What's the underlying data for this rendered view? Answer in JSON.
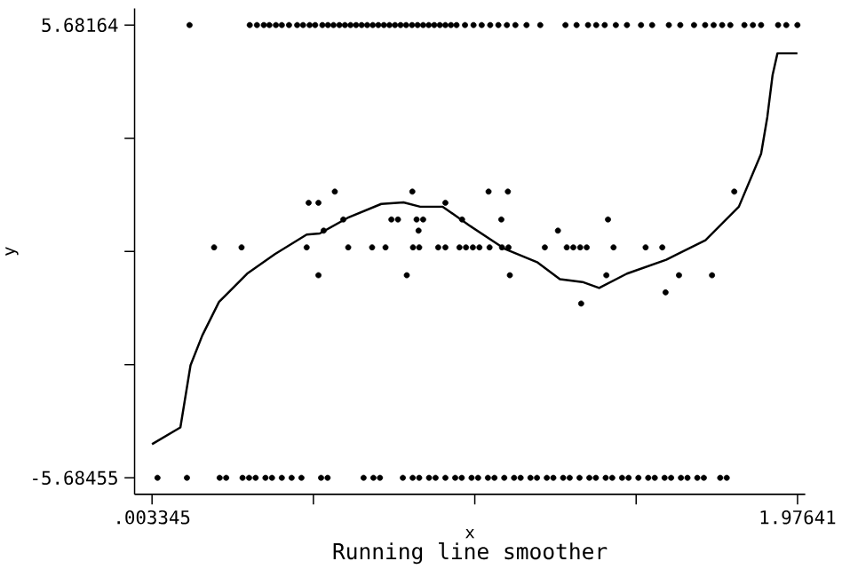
{
  "chart_data": {
    "type": "scatter",
    "xlabel": "x",
    "ylabel": "y",
    "annotations": [
      "Running line smoother"
    ],
    "xlim": [
      -0.05,
      2.0
    ],
    "ylim": [
      -6.1,
      6.1
    ],
    "xticks": [
      {
        "value": 0.003345,
        "label": ".003345"
      },
      {
        "value": 0.4966,
        "label": null
      },
      {
        "value": 0.9899,
        "label": null
      },
      {
        "value": 1.4831,
        "label": null
      },
      1.97641
    ],
    "yticks": [
      -5.68455,
      {
        "value": -2.843,
        "label": null
      },
      {
        "value": -0.0015,
        "label": null
      },
      {
        "value": 2.84,
        "label": null
      },
      5.68164
    ],
    "marker": "circle",
    "series": [
      {
        "color": "#000000",
        "x": [
          0.118,
          0.302,
          0.324,
          0.345,
          0.362,
          0.382,
          0.4,
          0.422,
          0.447,
          0.465,
          0.485,
          0.502,
          0.524,
          0.541,
          0.558,
          0.576,
          0.593,
          0.61,
          0.627,
          0.644,
          0.661,
          0.678,
          0.695,
          0.712,
          0.729,
          0.746,
          0.763,
          0.78,
          0.798,
          0.815,
          0.832,
          0.849,
          0.866,
          0.883,
          0.9,
          0.917,
          0.934,
          0.96,
          0.986,
          1.011,
          1.037,
          1.062,
          1.088,
          1.114,
          1.148,
          1.19,
          1.267,
          1.301,
          1.336,
          1.361,
          1.387,
          1.421,
          1.455,
          1.498,
          1.532,
          1.583,
          1.618,
          1.66,
          1.694,
          1.72,
          1.746,
          1.771,
          1.814,
          1.84,
          1.865,
          1.917,
          1.942,
          1.976,
          0.562,
          0.799,
          1.032,
          1.091,
          1.783,
          0.482,
          0.512,
          0.9,
          0.588,
          0.735,
          0.755,
          0.812,
          0.832,
          0.951,
          1.071,
          1.397,
          0.528,
          0.818,
          1.244,
          0.193,
          0.277,
          0.476,
          0.603,
          0.676,
          0.717,
          0.801,
          0.82,
          0.878,
          0.9,
          0.943,
          0.963,
          0.984,
          1.004,
          1.035,
          1.073,
          1.093,
          1.204,
          1.271,
          1.291,
          1.312,
          1.332,
          1.414,
          1.512,
          1.563,
          0.512,
          0.782,
          1.097,
          1.392,
          1.614,
          1.715,
          1.573,
          1.315,
          0.02,
          0.11,
          0.21,
          0.23,
          0.28,
          0.3,
          0.32,
          0.35,
          0.37,
          0.4,
          0.43,
          0.46,
          0.52,
          0.54,
          0.65,
          0.68,
          0.7,
          0.77,
          0.8,
          0.82,
          0.85,
          0.87,
          0.9,
          0.93,
          0.95,
          0.98,
          1.0,
          1.03,
          1.05,
          1.08,
          1.11,
          1.13,
          1.16,
          1.18,
          1.21,
          1.23,
          1.26,
          1.28,
          1.31,
          1.34,
          1.36,
          1.39,
          1.41,
          1.44,
          1.46,
          1.49,
          1.52,
          1.54,
          1.57,
          1.59,
          1.62,
          1.64,
          1.67,
          1.69,
          1.74,
          1.76
        ],
        "values": [
          5.68164,
          5.68164,
          5.68164,
          5.68164,
          5.68164,
          5.68164,
          5.68164,
          5.68164,
          5.68164,
          5.68164,
          5.68164,
          5.68164,
          5.68164,
          5.68164,
          5.68164,
          5.68164,
          5.68164,
          5.68164,
          5.68164,
          5.68164,
          5.68164,
          5.68164,
          5.68164,
          5.68164,
          5.68164,
          5.68164,
          5.68164,
          5.68164,
          5.68164,
          5.68164,
          5.68164,
          5.68164,
          5.68164,
          5.68164,
          5.68164,
          5.68164,
          5.68164,
          5.68164,
          5.68164,
          5.68164,
          5.68164,
          5.68164,
          5.68164,
          5.68164,
          5.68164,
          5.68164,
          5.68164,
          5.68164,
          5.68164,
          5.68164,
          5.68164,
          5.68164,
          5.68164,
          5.68164,
          5.68164,
          5.68164,
          5.68164,
          5.68164,
          5.68164,
          5.68164,
          5.68164,
          5.68164,
          5.68164,
          5.68164,
          5.68164,
          5.68164,
          5.68164,
          5.68164,
          1.5,
          1.5,
          1.5,
          1.5,
          1.5,
          1.22,
          1.22,
          1.22,
          0.8,
          0.8,
          0.8,
          0.8,
          0.8,
          0.8,
          0.8,
          0.8,
          0.52,
          0.52,
          0.52,
          0.1,
          0.1,
          0.1,
          0.1,
          0.1,
          0.1,
          0.1,
          0.1,
          0.1,
          0.1,
          0.1,
          0.1,
          0.1,
          0.1,
          0.1,
          0.1,
          0.1,
          0.1,
          0.1,
          0.1,
          0.1,
          0.1,
          0.1,
          0.1,
          0.1,
          -0.6,
          -0.6,
          -0.6,
          -0.6,
          -0.6,
          -0.6,
          -1.03,
          -1.31,
          -5.68455,
          -5.68455,
          -5.68455,
          -5.68455,
          -5.68455,
          -5.68455,
          -5.68455,
          -5.68455,
          -5.68455,
          -5.68455,
          -5.68455,
          -5.68455,
          -5.68455,
          -5.68455,
          -5.68455,
          -5.68455,
          -5.68455,
          -5.68455,
          -5.68455,
          -5.68455,
          -5.68455,
          -5.68455,
          -5.68455,
          -5.68455,
          -5.68455,
          -5.68455,
          -5.68455,
          -5.68455,
          -5.68455,
          -5.68455,
          -5.68455,
          -5.68455,
          -5.68455,
          -5.68455,
          -5.68455,
          -5.68455,
          -5.68455,
          -5.68455,
          -5.68455,
          -5.68455,
          -5.68455,
          -5.68455,
          -5.68455,
          -5.68455,
          -5.68455,
          -5.68455,
          -5.68455,
          -5.68455,
          -5.68455,
          -5.68455,
          -5.68455,
          -5.68455,
          -5.68455,
          -5.68455,
          -5.68455,
          -5.68455
        ]
      },
      {
        "type": "line",
        "color": "#000000",
        "marker": "none",
        "line_style": "solid",
        "x": [
          0.0033,
          0.09,
          0.121,
          0.157,
          0.208,
          0.294,
          0.379,
          0.476,
          0.516,
          0.601,
          0.704,
          0.772,
          0.823,
          0.892,
          0.977,
          1.08,
          1.182,
          1.25,
          1.319,
          1.37,
          1.455,
          1.575,
          1.695,
          1.797,
          1.865,
          1.884,
          1.9,
          1.915,
          1.976
        ],
        "values": [
          -4.84,
          -4.42,
          -2.86,
          -2.11,
          -1.27,
          -0.56,
          -0.07,
          0.42,
          0.45,
          0.84,
          1.19,
          1.23,
          1.12,
          1.12,
          0.63,
          0.07,
          -0.28,
          -0.7,
          -0.77,
          -0.92,
          -0.56,
          -0.21,
          0.28,
          1.12,
          2.45,
          3.37,
          4.42,
          4.97,
          4.97
        ]
      }
    ]
  }
}
